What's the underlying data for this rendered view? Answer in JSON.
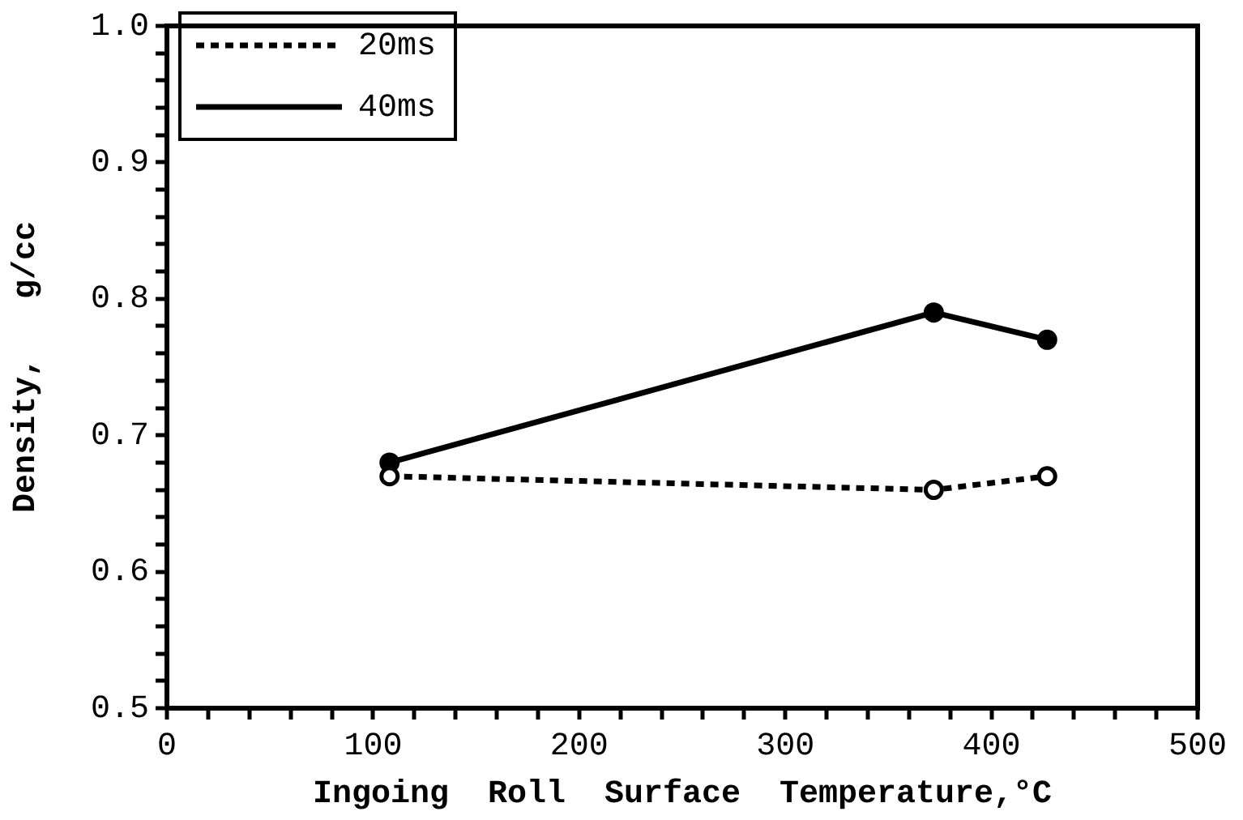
{
  "chart_data": {
    "type": "line",
    "xlabel": "Ingoing  Roll  Surface  Temperature,°C",
    "ylabel": "Density,   g/cc",
    "xlim": [
      0,
      500
    ],
    "xticks": [
      0,
      {
        "value": 20,
        "label": null
      },
      {
        "value": 40,
        "label": null
      },
      {
        "value": 60,
        "label": null
      },
      {
        "value": 80,
        "label": null
      },
      100,
      {
        "value": 120,
        "label": null
      },
      {
        "value": 140,
        "label": null
      },
      {
        "value": 160,
        "label": null
      },
      {
        "value": 180,
        "label": null
      },
      200,
      {
        "value": 220,
        "label": null
      },
      {
        "value": 240,
        "label": null
      },
      {
        "value": 260,
        "label": null
      },
      {
        "value": 280,
        "label": null
      },
      300,
      {
        "value": 320,
        "label": null
      },
      {
        "value": 340,
        "label": null
      },
      {
        "value": 360,
        "label": null
      },
      {
        "value": 380,
        "label": null
      },
      400,
      {
        "value": 420,
        "label": null
      },
      {
        "value": 440,
        "label": null
      },
      {
        "value": 460,
        "label": null
      },
      {
        "value": 480,
        "label": null
      },
      500
    ],
    "ylim": [
      0.5,
      1.0
    ],
    "yticks": [
      0.5,
      {
        "value": 0.52,
        "label": null
      },
      {
        "value": 0.54,
        "label": null
      },
      {
        "value": 0.56,
        "label": null
      },
      {
        "value": 0.58,
        "label": null
      },
      0.6,
      {
        "value": 0.62,
        "label": null
      },
      {
        "value": 0.64,
        "label": null
      },
      {
        "value": 0.66,
        "label": null
      },
      {
        "value": 0.68,
        "label": null
      },
      0.7,
      {
        "value": 0.72,
        "label": null
      },
      {
        "value": 0.74,
        "label": null
      },
      {
        "value": 0.76,
        "label": null
      },
      {
        "value": 0.78,
        "label": null
      },
      0.8,
      {
        "value": 0.82,
        "label": null
      },
      {
        "value": 0.84,
        "label": null
      },
      {
        "value": 0.86,
        "label": null
      },
      {
        "value": 0.88,
        "label": null
      },
      0.9,
      {
        "value": 0.92,
        "label": null
      },
      {
        "value": 0.94,
        "label": null
      },
      {
        "value": 0.96,
        "label": null
      },
      {
        "value": 0.98,
        "label": null
      },
      {
        "value": 1.0,
        "label": "1.0"
      }
    ],
    "x": [
      108,
      372,
      427
    ],
    "legend": "top left",
    "marker": "circle",
    "series": [
      {
        "name": "20ms",
        "color": "#000000",
        "values": [
          0.67,
          0.66,
          0.67
        ],
        "line_style": "dotted"
      },
      {
        "name": "40ms",
        "color": "#000000",
        "values": [
          0.68,
          0.79,
          0.77
        ],
        "line_style": "solid"
      }
    ]
  }
}
